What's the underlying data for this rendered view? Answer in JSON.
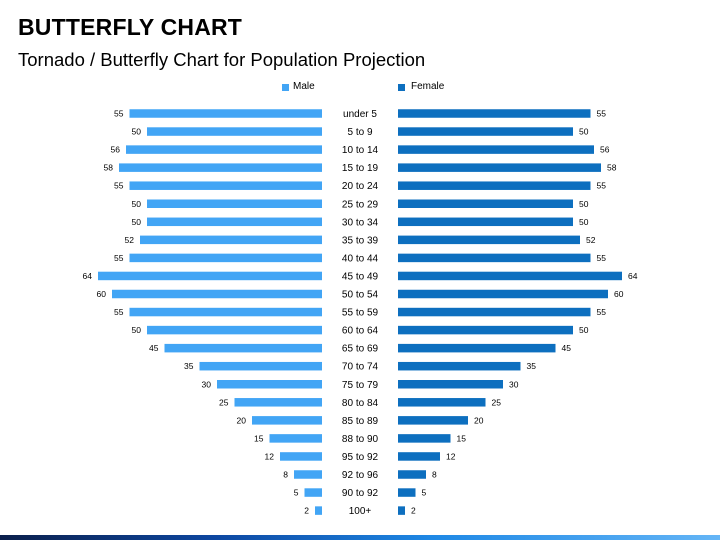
{
  "title": "BUTTERFLY CHART",
  "subtitle": "Tornado / Butterfly Chart for Population Projection",
  "chart_data": {
    "type": "bar",
    "categories": [
      "under 5",
      "5 to 9",
      "10 to 14",
      "15 to 19",
      "20 to 24",
      "25 to 29",
      "30 to 34",
      "35 to 39",
      "40 to 44",
      "45 to 49",
      "50 to 54",
      "55 to 59",
      "60 to 64",
      "65 to 69",
      "70 to 74",
      "75 to 79",
      "80 to 84",
      "85 to 89",
      "88 to 90",
      "95 to 92",
      "92 to 96",
      "90 to 92",
      "100+"
    ],
    "series": [
      {
        "name": "Male",
        "color": "#42a5f5",
        "values": [
          55,
          50,
          56,
          58,
          55,
          50,
          50,
          52,
          55,
          64,
          60,
          55,
          50,
          45,
          35,
          30,
          25,
          20,
          15,
          12,
          8,
          5,
          2
        ]
      },
      {
        "name": "Female",
        "color": "#0d6fbf",
        "values": [
          55,
          50,
          56,
          58,
          55,
          50,
          50,
          52,
          55,
          64,
          60,
          55,
          50,
          45,
          35,
          30,
          25,
          20,
          15,
          12,
          8,
          5,
          2
        ]
      }
    ],
    "legend_position": "top-center",
    "grid": false
  }
}
